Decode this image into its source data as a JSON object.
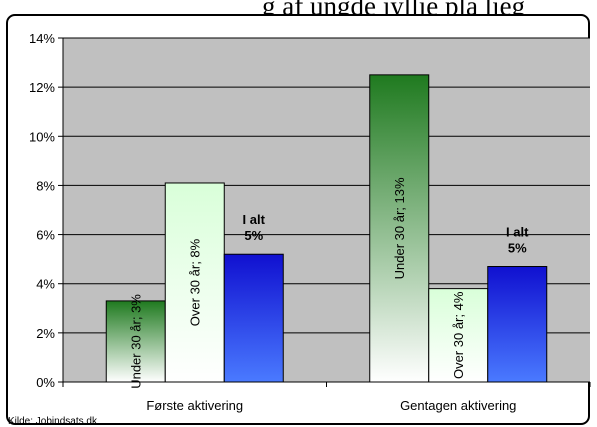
{
  "header": {
    "title_fragment": "g af ungde jyllie pla lieg"
  },
  "source_note": "Kilde: Jobindsats.dk",
  "chart_data": {
    "type": "bar",
    "categories": [
      "Første aktivering",
      "Gentagen aktivering"
    ],
    "series": [
      {
        "key": "under30",
        "values": [
          3.3,
          12.5
        ],
        "labels": [
          "Under 30 år; 3%",
          "Under 30 år; 13%"
        ],
        "label_orientation": "vertical",
        "colors": [
          "#1f7a1f",
          "#ffffff"
        ]
      },
      {
        "key": "over30",
        "values": [
          8.1,
          3.8
        ],
        "labels": [
          "Over 30 år; 8%",
          "Over 30 år; 4%"
        ],
        "label_orientation": "vertical",
        "colors": [
          "#d9ffd9",
          "#ffffff"
        ]
      },
      {
        "key": "total",
        "values": [
          5.2,
          4.7
        ],
        "labels": [
          "I alt\n5%",
          "I alt\n5%"
        ],
        "label_orientation": "horizontal",
        "colors": [
          "#1010d0",
          "#4a7aff"
        ]
      }
    ],
    "ylim": [
      0,
      14
    ],
    "yticks": [
      "0%",
      "2%",
      "4%",
      "6%",
      "8%",
      "10%",
      "12%",
      "14%"
    ],
    "plot_background": "#c0c0c0",
    "grid": true
  }
}
